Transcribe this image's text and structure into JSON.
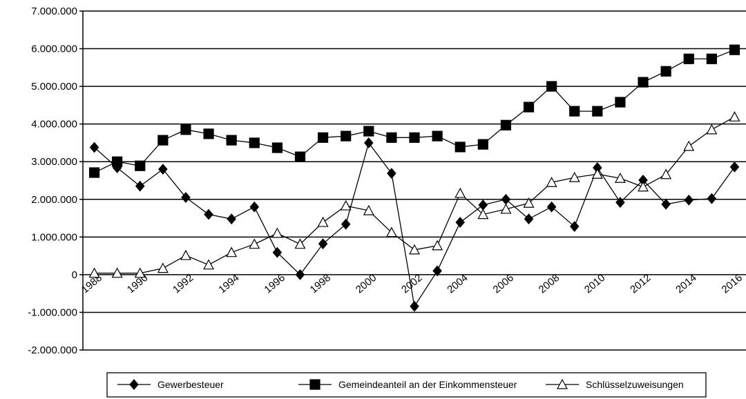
{
  "chart_data": {
    "type": "line",
    "categories": [
      "1988",
      null,
      "1990",
      null,
      "1992",
      null,
      "1994",
      null,
      "1996",
      null,
      "1998",
      null,
      "2000",
      null,
      "2002",
      null,
      "2004",
      null,
      "2006",
      null,
      "2008",
      null,
      "2010",
      null,
      "2012",
      null,
      "2014",
      null,
      "2016"
    ],
    "series": [
      {
        "name": "Gewerbesteuer",
        "color": "#000000",
        "marker": "diamond",
        "values": [
          3380000,
          2840000,
          2350000,
          2800000,
          2050000,
          1600000,
          1480000,
          1800000,
          590000,
          0,
          820000,
          1340000,
          3500000,
          2690000,
          -840000,
          100000,
          1390000,
          1850000,
          2000000,
          1480000,
          1800000,
          1280000,
          2840000,
          1920000,
          2510000,
          1870000,
          1980000,
          2020000,
          2860000
        ]
      },
      {
        "name": "Gemeindeanteil an der Einkommensteuer",
        "color": "#000000",
        "marker": "square",
        "values": [
          2710000,
          3000000,
          2890000,
          3570000,
          3850000,
          3740000,
          3570000,
          3500000,
          3370000,
          3130000,
          3640000,
          3680000,
          3810000,
          3640000,
          3640000,
          3680000,
          3390000,
          3460000,
          3970000,
          4450000,
          5000000,
          4340000,
          4340000,
          4580000,
          5110000,
          5400000,
          5730000,
          5730000,
          5970000
        ]
      },
      {
        "name": "Schlüsselzuweisungen",
        "color": "#000000",
        "marker": "triangle",
        "values": [
          40000,
          40000,
          40000,
          170000,
          510000,
          260000,
          590000,
          810000,
          1100000,
          810000,
          1390000,
          1830000,
          1700000,
          1120000,
          660000,
          770000,
          2160000,
          1600000,
          1740000,
          1900000,
          2450000,
          2580000,
          2670000,
          2560000,
          2330000,
          2660000,
          3410000,
          3850000,
          4190000
        ]
      }
    ],
    "ylim": [
      -2000000,
      7000000
    ],
    "yticks": [
      {
        "value": -2000000,
        "label": "-2.000.000"
      },
      {
        "value": -1000000,
        "label": "-1.000.000"
      },
      0,
      {
        "value": 1000000,
        "label": "1.000.000"
      },
      {
        "value": 2000000,
        "label": "2.000.000"
      },
      {
        "value": 3000000,
        "label": "3.000.000"
      },
      {
        "value": 4000000,
        "label": "4.000.000"
      },
      {
        "value": 5000000,
        "label": "5.000.000"
      },
      {
        "value": 6000000,
        "label": "6.000.000"
      },
      {
        "value": 7000000,
        "label": "7.000.000"
      }
    ],
    "grid": true,
    "legend": "bottom"
  }
}
